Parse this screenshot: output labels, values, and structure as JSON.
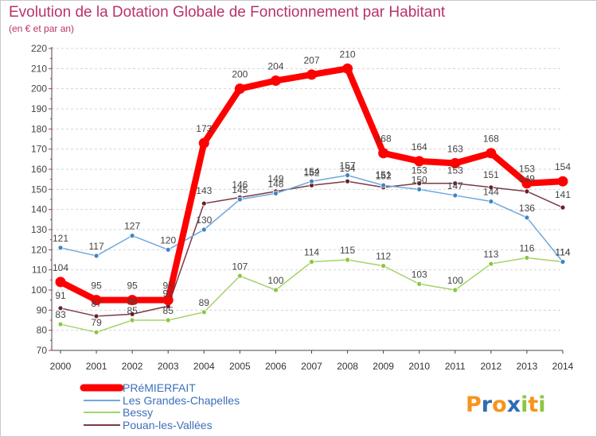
{
  "chart_data": {
    "type": "line",
    "title": "Evolution de la Dotation Globale de Fonctionnement par Habitant",
    "subtitle": "(en € et par an)",
    "xlabel": "",
    "ylabel": "",
    "x": [
      "2000",
      "2001",
      "2002",
      "2003",
      "2004",
      "2005",
      "2006",
      "2007",
      "2008",
      "2009",
      "2010",
      "2011",
      "2012",
      "2013",
      "2014"
    ],
    "ylim": [
      70,
      220
    ],
    "yticks": [
      70,
      80,
      90,
      100,
      110,
      120,
      130,
      140,
      150,
      160,
      170,
      180,
      190,
      200,
      210,
      220
    ],
    "grid": "horizontal dashed",
    "legend_position": "bottom-left",
    "series": [
      {
        "name": "PRéMIERFAIT",
        "color": "#ff0000",
        "point_color": "#ff0000",
        "values": [
          104,
          95,
          95,
          95,
          173,
          200,
          204,
          207,
          210,
          168,
          164,
          163,
          168,
          153,
          154
        ]
      },
      {
        "name": "Les Grandes-Chapelles",
        "color": "#6fa8dc",
        "point_color": "#3d85c6",
        "values": [
          121,
          117,
          127,
          120,
          130,
          145,
          148,
          154,
          157,
          152,
          150,
          147,
          144,
          136,
          114
        ]
      },
      {
        "name": "Bessy",
        "color": "#a4d36a",
        "point_color": "#8cc63f",
        "values": [
          83,
          79,
          85,
          85,
          89,
          107,
          100,
          114,
          115,
          112,
          103,
          100,
          113,
          116,
          114
        ]
      },
      {
        "name": "Pouan-les-Vallées",
        "color": "#7b3a44",
        "point_color": "#6b1f2a",
        "values": [
          91,
          87,
          88,
          92,
          143,
          146,
          149,
          152,
          154,
          151,
          153,
          153,
          151,
          149,
          141
        ]
      }
    ]
  },
  "logo": {
    "text": "Proxiti",
    "letters": [
      "P",
      "r",
      "o",
      "x",
      "i",
      "t",
      "i"
    ],
    "colors": [
      "#f7941d",
      "#2e6db4",
      "#f7941d",
      "#2e6db4",
      "#8dc63f",
      "#f7941d",
      "#8dc63f"
    ]
  }
}
